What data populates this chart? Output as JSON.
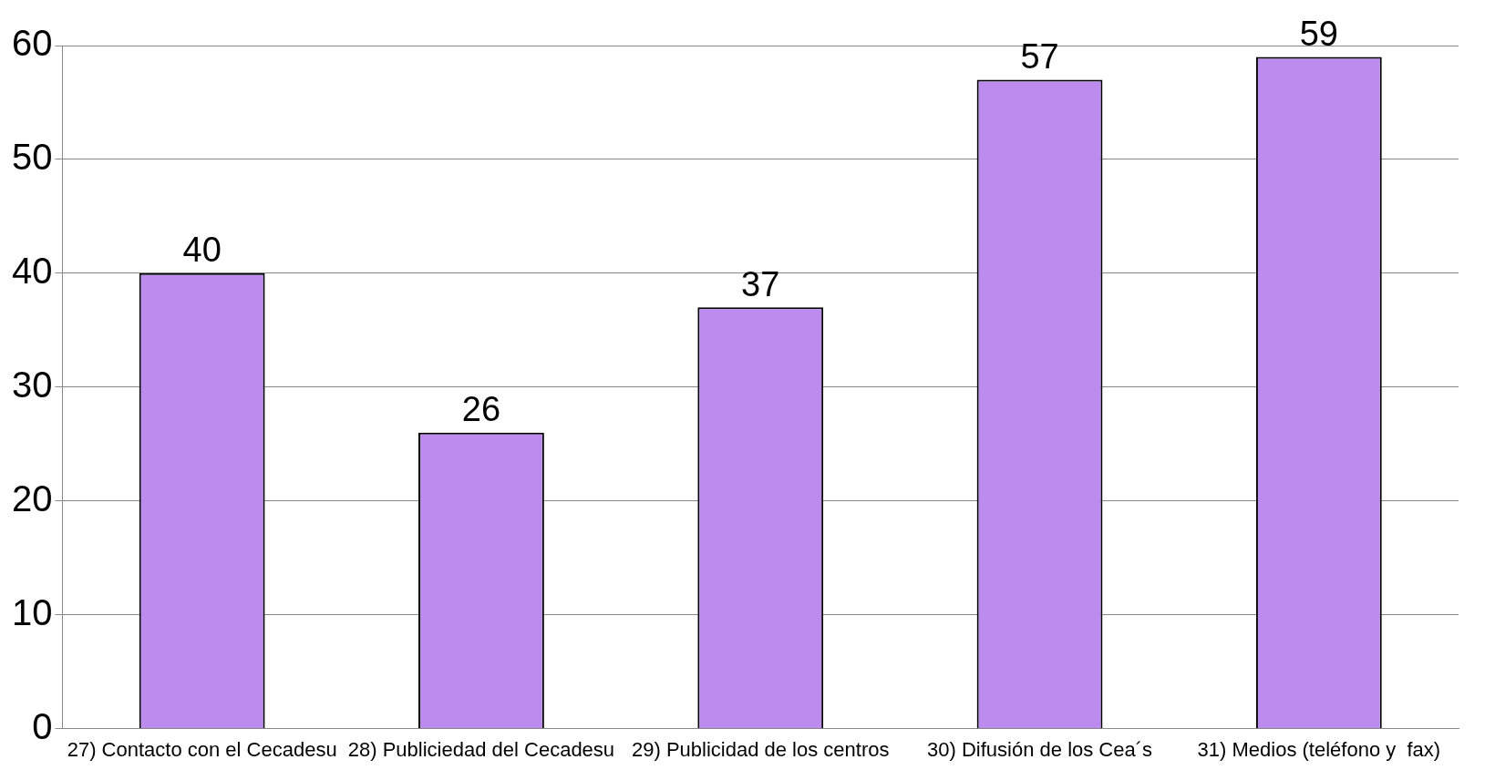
{
  "chart_data": {
    "type": "bar",
    "categories": [
      "27) Contacto con el Cecadesu",
      "28) Publiciedad del Cecadesu",
      "29) Publicidad de los centros",
      "30) Difusión de los Cea´s",
      "31) Medios (teléfono y  fax)"
    ],
    "values": [
      40,
      26,
      37,
      57,
      59
    ],
    "color": "#bb8cee",
    "ylim": [
      0,
      60
    ],
    "yticks": [
      0,
      10,
      20,
      30,
      40,
      50,
      60
    ],
    "grid": "y",
    "data_labels": true
  }
}
